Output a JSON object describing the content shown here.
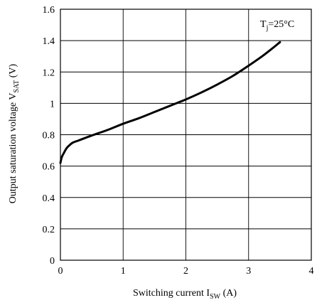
{
  "chart_data": {
    "type": "line",
    "title": "",
    "xlabel": {
      "main": "Switching current  I",
      "sub": "SW",
      "unit": " (A)"
    },
    "ylabel": {
      "main": "Output saturation voltage V",
      "sub": "SAT",
      "unit": " (V)"
    },
    "xlim": [
      0,
      4
    ],
    "ylim": [
      0,
      1.6
    ],
    "x_ticks": [
      0,
      1,
      2,
      3,
      4
    ],
    "x_tick_labels": [
      "0",
      "1",
      "2",
      "3",
      "4"
    ],
    "y_ticks": [
      0,
      0.2,
      0.4,
      0.6,
      0.8,
      1.0,
      1.2,
      1.4,
      1.6
    ],
    "y_tick_labels": [
      "0",
      "0.2",
      "0.4",
      "0.6",
      "0.8",
      "1",
      "1.2",
      "1.4",
      "1.6"
    ],
    "grid": true,
    "annotation": {
      "main": "T",
      "sub": "j",
      "rest": "=25°C"
    },
    "series": [
      {
        "color": "#000000",
        "x": [
          0.0,
          0.02,
          0.05,
          0.1,
          0.15,
          0.2,
          0.3,
          0.5,
          0.75,
          1.0,
          1.25,
          1.5,
          1.75,
          2.0,
          2.25,
          2.5,
          2.75,
          3.0,
          3.25,
          3.5
        ],
        "y": [
          0.62,
          0.655,
          0.68,
          0.715,
          0.735,
          0.75,
          0.765,
          0.795,
          0.83,
          0.87,
          0.905,
          0.945,
          0.985,
          1.025,
          1.07,
          1.12,
          1.175,
          1.24,
          1.31,
          1.39
        ]
      }
    ]
  }
}
